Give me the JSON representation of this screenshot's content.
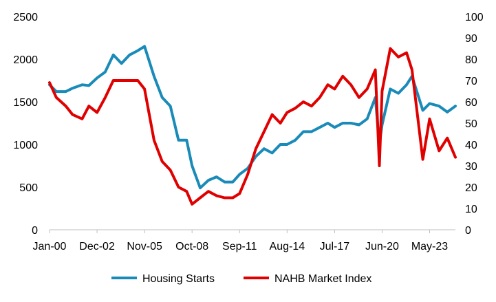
{
  "chart_data": {
    "type": "line",
    "x_tick_labels": [
      "Jan-00",
      "Dec-02",
      "Nov-05",
      "Oct-08",
      "Sep-11",
      "Aug-14",
      "Jul-17",
      "Jun-20",
      "May-23"
    ],
    "y_left": {
      "ticks": [
        0,
        500,
        1000,
        1500,
        2000,
        2500
      ],
      "range": [
        0,
        2500
      ]
    },
    "y_right": {
      "ticks": [
        0,
        10,
        20,
        30,
        40,
        50,
        60,
        70,
        80,
        90,
        100
      ],
      "range": [
        0,
        100
      ]
    },
    "grid": false,
    "legend_position": "bottom",
    "series": [
      {
        "name": "Housing Starts",
        "axis": "left",
        "color": "#1a8bb8",
        "points": [
          [
            "Jan-00",
            1700
          ],
          [
            "Jun-00",
            1620
          ],
          [
            "Jan-01",
            1620
          ],
          [
            "Jun-01",
            1660
          ],
          [
            "Jan-02",
            1700
          ],
          [
            "Jun-02",
            1690
          ],
          [
            "Dec-02",
            1780
          ],
          [
            "Jun-03",
            1850
          ],
          [
            "Dec-03",
            2050
          ],
          [
            "Jun-04",
            1950
          ],
          [
            "Dec-04",
            2050
          ],
          [
            "Jun-05",
            2100
          ],
          [
            "Nov-05",
            2150
          ],
          [
            "Jun-06",
            1800
          ],
          [
            "Dec-06",
            1550
          ],
          [
            "Jun-07",
            1450
          ],
          [
            "Dec-07",
            1050
          ],
          [
            "Jun-08",
            1050
          ],
          [
            "Oct-08",
            750
          ],
          [
            "Apr-09",
            490
          ],
          [
            "Oct-09",
            580
          ],
          [
            "Apr-10",
            620
          ],
          [
            "Oct-10",
            560
          ],
          [
            "Apr-11",
            560
          ],
          [
            "Sep-11",
            650
          ],
          [
            "Mar-12",
            720
          ],
          [
            "Sep-12",
            860
          ],
          [
            "Mar-13",
            950
          ],
          [
            "Sep-13",
            900
          ],
          [
            "Mar-14",
            1000
          ],
          [
            "Aug-14",
            1000
          ],
          [
            "Feb-15",
            1050
          ],
          [
            "Aug-15",
            1150
          ],
          [
            "Feb-16",
            1150
          ],
          [
            "Aug-16",
            1200
          ],
          [
            "Feb-17",
            1250
          ],
          [
            "Jul-17",
            1200
          ],
          [
            "Jan-18",
            1250
          ],
          [
            "Jul-18",
            1250
          ],
          [
            "Jan-19",
            1230
          ],
          [
            "Jul-19",
            1300
          ],
          [
            "Jan-20",
            1550
          ],
          [
            "Apr-20",
            1000
          ],
          [
            "Jun-20",
            1230
          ],
          [
            "Dec-20",
            1650
          ],
          [
            "Jun-21",
            1600
          ],
          [
            "Dec-21",
            1700
          ],
          [
            "Apr-22",
            1800
          ],
          [
            "Dec-22",
            1400
          ],
          [
            "May-23",
            1480
          ],
          [
            "Dec-23",
            1450
          ],
          [
            "Jun-24",
            1380
          ],
          [
            "Dec-24",
            1450
          ]
        ]
      },
      {
        "name": "NAHB Market Index",
        "axis": "right",
        "color": "#e00000",
        "points": [
          [
            "Jan-00",
            69
          ],
          [
            "Jun-00",
            62
          ],
          [
            "Jan-01",
            58
          ],
          [
            "Jun-01",
            54
          ],
          [
            "Jan-02",
            52
          ],
          [
            "Jun-02",
            58
          ],
          [
            "Dec-02",
            55
          ],
          [
            "Jun-03",
            62
          ],
          [
            "Dec-03",
            70
          ],
          [
            "Jun-04",
            70
          ],
          [
            "Dec-04",
            70
          ],
          [
            "Jun-05",
            70
          ],
          [
            "Nov-05",
            66
          ],
          [
            "Jun-06",
            42
          ],
          [
            "Dec-06",
            32
          ],
          [
            "Jun-07",
            28
          ],
          [
            "Dec-07",
            20
          ],
          [
            "Jun-08",
            18
          ],
          [
            "Oct-08",
            12
          ],
          [
            "Apr-09",
            15
          ],
          [
            "Oct-09",
            18
          ],
          [
            "Apr-10",
            16
          ],
          [
            "Oct-10",
            15
          ],
          [
            "Apr-11",
            15
          ],
          [
            "Sep-11",
            17
          ],
          [
            "Mar-12",
            26
          ],
          [
            "Sep-12",
            38
          ],
          [
            "Mar-13",
            46
          ],
          [
            "Sep-13",
            54
          ],
          [
            "Mar-14",
            50
          ],
          [
            "Aug-14",
            55
          ],
          [
            "Feb-15",
            57
          ],
          [
            "Aug-15",
            60
          ],
          [
            "Feb-16",
            58
          ],
          [
            "Aug-16",
            62
          ],
          [
            "Feb-17",
            68
          ],
          [
            "Jul-17",
            66
          ],
          [
            "Jan-18",
            72
          ],
          [
            "Jul-18",
            68
          ],
          [
            "Jan-19",
            62
          ],
          [
            "Jul-19",
            66
          ],
          [
            "Jan-20",
            75
          ],
          [
            "Apr-20",
            30
          ],
          [
            "Jun-20",
            65
          ],
          [
            "Dec-20",
            85
          ],
          [
            "Jun-21",
            81
          ],
          [
            "Dec-21",
            83
          ],
          [
            "Apr-22",
            75
          ],
          [
            "Dec-22",
            33
          ],
          [
            "May-23",
            52
          ],
          [
            "Dec-23",
            37
          ],
          [
            "Jun-24",
            43
          ],
          [
            "Dec-24",
            34
          ]
        ]
      }
    ]
  }
}
